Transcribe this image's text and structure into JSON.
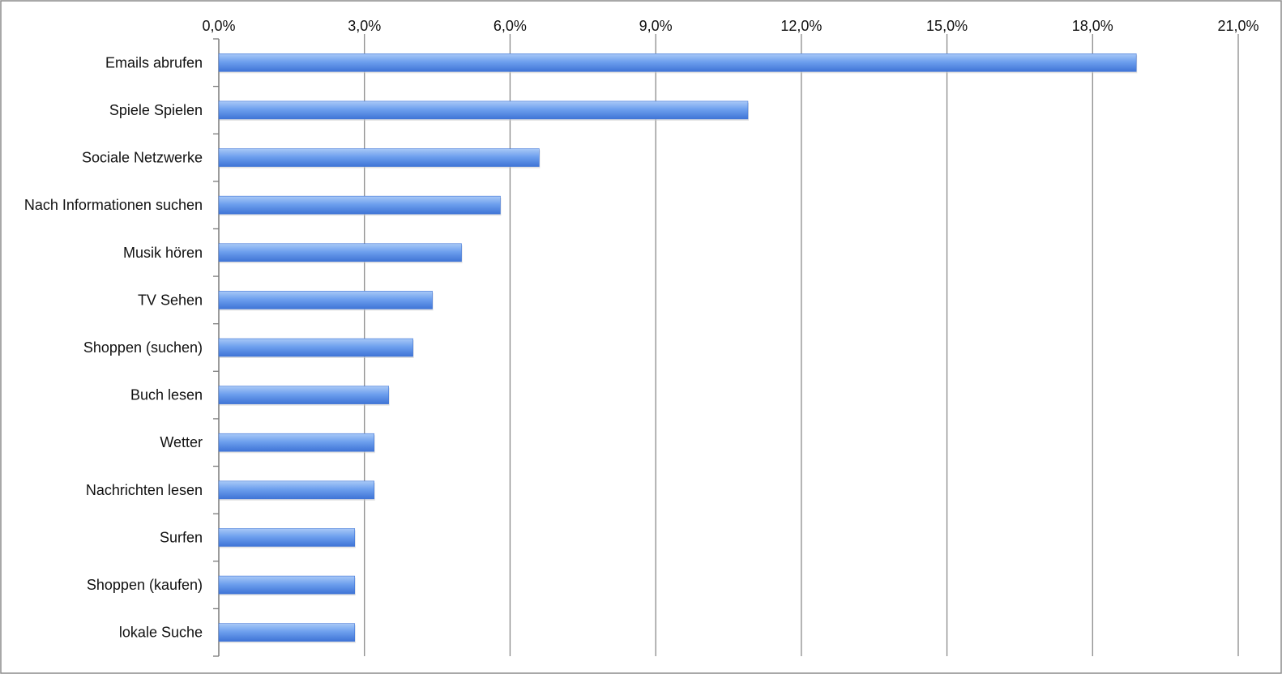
{
  "chart_data": {
    "type": "bar",
    "orientation": "horizontal",
    "title": "",
    "xlabel": "",
    "ylabel": "",
    "xlim": [
      0,
      21
    ],
    "x_ticks": [
      "0,0%",
      "3,0%",
      "6,0%",
      "9,0%",
      "12,0%",
      "15,0%",
      "18,0%",
      "21,0%"
    ],
    "tick_axis_position": "top",
    "grid": true,
    "legend": "none",
    "categories": [
      "Emails abrufen",
      "Spiele Spielen",
      "Sociale Netzwerke",
      "Nach Informationen suchen",
      "Musik hören",
      "TV Sehen",
      "Shoppen (suchen)",
      "Buch lesen",
      "Wetter",
      "Nachrichten lesen",
      "Surfen",
      "Shoppen (kaufen)",
      "lokale Suche"
    ],
    "values": [
      18.9,
      10.9,
      6.6,
      5.8,
      5.0,
      4.4,
      4.0,
      3.5,
      3.2,
      3.2,
      2.8,
      2.8,
      2.8
    ],
    "colors": {
      "bar_light": "#a9c9f7",
      "bar_mid": "#6ea0ee",
      "bar_dark": "#3f74d6",
      "grid": "#8a8a8a",
      "axis": "#7a7a7a",
      "frame": "#8c8c8c"
    }
  }
}
